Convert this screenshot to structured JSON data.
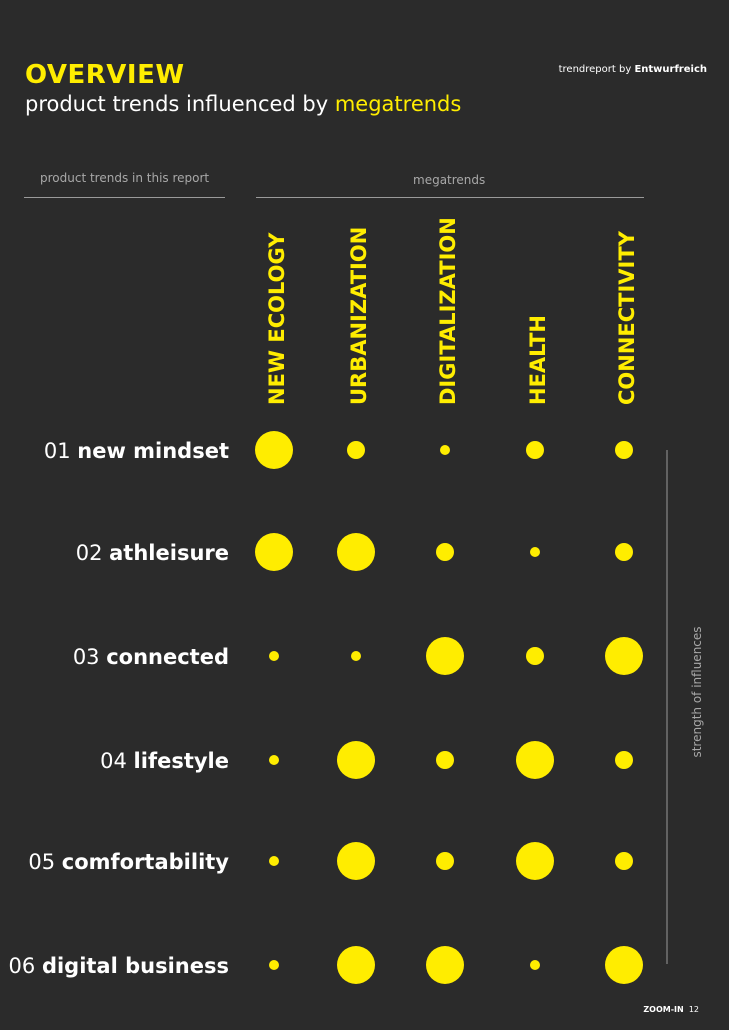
{
  "header": {
    "title": "OVERVIEW",
    "subtitle_prefix": "product trends influenced by ",
    "subtitle_highlight": "megatrends",
    "brand_prefix": "trendreport by ",
    "brand_name": "Entwurfreich"
  },
  "table_headers": {
    "left": "product trends in this report",
    "middle": "megatrends"
  },
  "footer": {
    "label": "ZOOM-IN",
    "page": "12"
  },
  "colors": {
    "background": "#2b2b2b",
    "accent": "#ffed00",
    "text": "#ffffff",
    "muted": "#a8a8a8"
  },
  "chart_data": {
    "type": "scatter",
    "columns": [
      "NEW ECOLOGY",
      "URBANIZATION",
      "DIGITALIZATION",
      "HEALTH",
      "CONNECTIVITY"
    ],
    "rows": [
      {
        "num": "01",
        "name": "new mindset"
      },
      {
        "num": "02",
        "name": "athleisure"
      },
      {
        "num": "03",
        "name": "connected"
      },
      {
        "num": "04",
        "name": "lifestyle"
      },
      {
        "num": "05",
        "name": "comfortability"
      },
      {
        "num": "06",
        "name": "digital business"
      }
    ],
    "values": [
      [
        4,
        2,
        1,
        2,
        2
      ],
      [
        4,
        4,
        2,
        1,
        2
      ],
      [
        1,
        1,
        4,
        2,
        4
      ],
      [
        1,
        4,
        2,
        4,
        2
      ],
      [
        1,
        4,
        2,
        4,
        2
      ],
      [
        1,
        4,
        4,
        1,
        4
      ]
    ],
    "size_axis_label": "strength of influences"
  }
}
